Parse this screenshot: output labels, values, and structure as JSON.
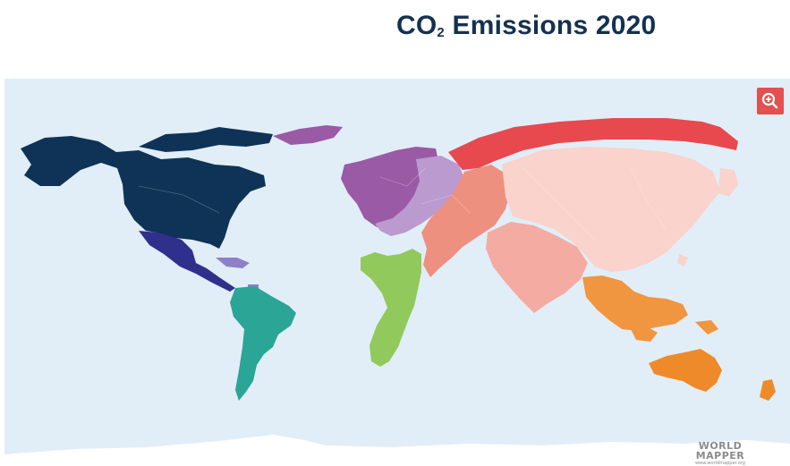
{
  "title": {
    "main": "CO",
    "subscript": "2",
    "rest": " Emissions 2020"
  },
  "map": {
    "type": "cartogram",
    "ocean_color": "#e1eef8",
    "regions": [
      {
        "name": "North America",
        "color": "#0e3356"
      },
      {
        "name": "Central America",
        "color": "#2f2f8c"
      },
      {
        "name": "Caribbean",
        "color": "#8f7fc8"
      },
      {
        "name": "South America",
        "color": "#2aa596"
      },
      {
        "name": "Western Europe",
        "color": "#9b5aa6"
      },
      {
        "name": "Eastern Europe",
        "color": "#bb9acf"
      },
      {
        "name": "Africa",
        "color": "#91c95c"
      },
      {
        "name": "Russia / Northern Asia",
        "color": "#e7494f"
      },
      {
        "name": "Middle East",
        "color": "#ee9080"
      },
      {
        "name": "South Asia",
        "color": "#f4aba2"
      },
      {
        "name": "East Asia",
        "color": "#f9d3cc"
      },
      {
        "name": "South-East Asia",
        "color": "#f09640"
      },
      {
        "name": "Oceania",
        "color": "#ef8a2a"
      },
      {
        "name": "Antarctica",
        "color": "#ffffff"
      }
    ]
  },
  "zoom_button": {
    "icon": "zoom-in-icon",
    "color": "#e2504f"
  },
  "logo": {
    "line1": "WORLD",
    "line2": "MAPPER",
    "line3": "www.worldmapper.org"
  }
}
